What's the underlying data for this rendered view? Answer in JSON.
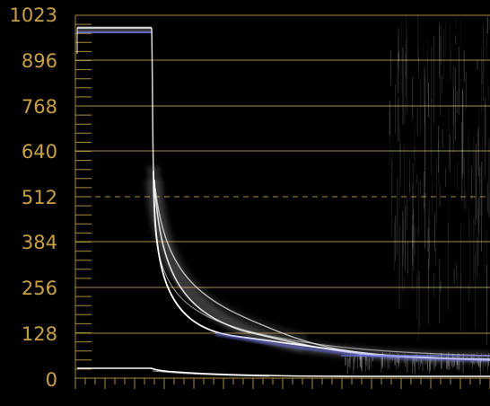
{
  "scope": {
    "type": "waveform",
    "scale_labels": [
      "1023",
      "896",
      "768",
      "640",
      "512",
      "384",
      "256",
      "128",
      "0"
    ],
    "scale_values": [
      1023,
      896,
      768,
      640,
      512,
      384,
      256,
      128,
      0
    ],
    "dashed_value": 512,
    "colors": {
      "background": "#000000",
      "graticule": "#a88a3c",
      "label": "#c9a045",
      "trace": "#ffffff",
      "trace_tint": "#6f74e6"
    }
  }
}
